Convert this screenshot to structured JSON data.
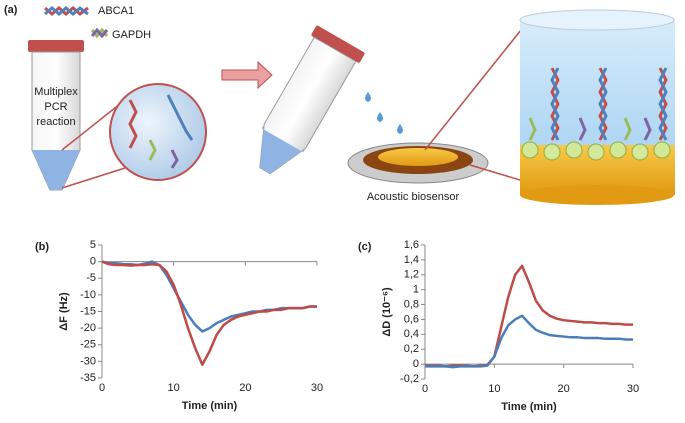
{
  "diagram": {
    "panel": "(a)",
    "legend": [
      "ABCA1",
      "GAPDH"
    ],
    "tube_label": [
      "Multiplex",
      "PCR",
      "reaction"
    ],
    "sensor_label": "Acoustic biosensor"
  },
  "chart_data": [
    {
      "type": "line",
      "panel": "(b)",
      "ylabel": "ΔF (Hz)",
      "xlabel": "Time (min)",
      "x": [
        0,
        1,
        2,
        3,
        4,
        5,
        6,
        7,
        8,
        9,
        10,
        11,
        12,
        13,
        14,
        15,
        16,
        17,
        18,
        19,
        20,
        21,
        22,
        23,
        24,
        25,
        26,
        27,
        28,
        29,
        30
      ],
      "xlim": [
        0,
        30
      ],
      "xticks": [
        0,
        10,
        20,
        30
      ],
      "ylim": [
        -35,
        5
      ],
      "yticks": [
        5,
        0,
        -5,
        -10,
        -15,
        -20,
        -25,
        -30,
        -35
      ],
      "series": [
        {
          "color": "#4a7ebb",
          "values": [
            0,
            -0.5,
            -0.5,
            -0.8,
            -0.8,
            -1,
            -0.6,
            0,
            -1,
            -4,
            -8,
            -12,
            -16,
            -19,
            -21,
            -20,
            -18.5,
            -17.5,
            -16.5,
            -16,
            -15.5,
            -15,
            -15,
            -14.5,
            -14.5,
            -14,
            -14,
            -14,
            -14,
            -13.5,
            -13.5
          ]
        },
        {
          "color": "#be4b48",
          "values": [
            0,
            -0.8,
            -1,
            -1,
            -1.2,
            -1,
            -1,
            -0.8,
            -1,
            -3,
            -7,
            -13,
            -20,
            -26,
            -31,
            -27,
            -22,
            -19,
            -17.5,
            -16.5,
            -16,
            -15.5,
            -15,
            -15,
            -14.5,
            -14.5,
            -14,
            -14,
            -14,
            -13.5,
            -13.5
          ]
        }
      ]
    },
    {
      "type": "line",
      "panel": "(c)",
      "ylabel": "ΔD (10⁻⁶)",
      "xlabel": "Time (min)",
      "x": [
        0,
        1,
        2,
        3,
        4,
        5,
        6,
        7,
        8,
        9,
        10,
        11,
        12,
        13,
        14,
        15,
        16,
        17,
        18,
        19,
        20,
        21,
        22,
        23,
        24,
        25,
        26,
        27,
        28,
        29,
        30
      ],
      "xlim": [
        0,
        30
      ],
      "xticks": [
        0,
        10,
        20,
        30
      ],
      "ylim": [
        -0.2,
        1.6
      ],
      "yticks": [
        {
          "value": 1.6,
          "label": "1,6"
        },
        {
          "value": 1.4,
          "label": "1,4"
        },
        {
          "value": 1.2,
          "label": "1,2"
        },
        1,
        {
          "value": 0.8,
          "label": "0,8"
        },
        {
          "value": 0.6,
          "label": "0,6"
        },
        {
          "value": 0.4,
          "label": "0,4"
        },
        {
          "value": 0.2,
          "label": "0,2"
        },
        0,
        {
          "value": -0.2,
          "label": "-0,2"
        }
      ],
      "series": [
        {
          "color": "#be4b48",
          "values": [
            -0.02,
            -0.02,
            -0.02,
            -0.03,
            -0.02,
            -0.02,
            -0.02,
            -0.03,
            -0.02,
            -0.01,
            0.1,
            0.5,
            0.9,
            1.2,
            1.32,
            1.1,
            0.85,
            0.72,
            0.65,
            0.61,
            0.59,
            0.58,
            0.57,
            0.56,
            0.56,
            0.55,
            0.55,
            0.54,
            0.54,
            0.53,
            0.53
          ]
        },
        {
          "color": "#4a7ebb",
          "values": [
            -0.03,
            -0.03,
            -0.03,
            -0.03,
            -0.04,
            -0.03,
            -0.03,
            -0.03,
            -0.03,
            -0.02,
            0.1,
            0.35,
            0.52,
            0.6,
            0.65,
            0.55,
            0.46,
            0.42,
            0.39,
            0.38,
            0.37,
            0.36,
            0.36,
            0.35,
            0.35,
            0.35,
            0.34,
            0.34,
            0.34,
            0.33,
            0.33
          ]
        }
      ]
    }
  ]
}
